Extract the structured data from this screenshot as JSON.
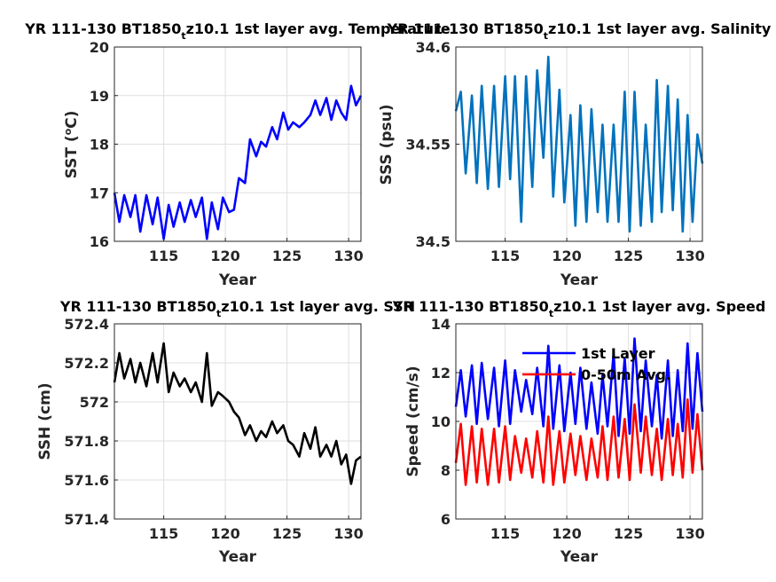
{
  "figure": {
    "panels": [
      {
        "title_main": "YR 111-130 BT1850",
        "title_sub": "t",
        "title_rest": "z10.1 1st layer avg. Temperature",
        "ylabel_main": "SST (",
        "ylabel_sup": "o",
        "ylabel_rest": "C)",
        "xlabel": "Year"
      },
      {
        "title_main": "YR 111-130 BT1850",
        "title_sub": "t",
        "title_rest": "z10.1 1st layer avg. Salinity",
        "ylabel_main": "SSS (psu)",
        "ylabel_sup": "",
        "ylabel_rest": "",
        "xlabel": "Year"
      },
      {
        "title_main": "YR 111-130 BT1850",
        "title_sub": "t",
        "title_rest": "z10.1 1st layer avg. SSH",
        "ylabel_main": "SSH (cm)",
        "ylabel_sup": "",
        "ylabel_rest": "",
        "xlabel": "Year"
      },
      {
        "title_main": "YR 111-130 BT1850",
        "title_sub": "t",
        "title_rest": "z10.1 1st layer avg. Speed",
        "ylabel_main": "Speed (cm/s)",
        "ylabel_sup": "",
        "ylabel_rest": "",
        "xlabel": "Year"
      }
    ]
  },
  "chart_data": [
    {
      "type": "line",
      "title": "YR 111-130 BT1850tz10.1 1st layer avg. Temperature",
      "xlabel": "Year",
      "ylabel": "SST (oC)",
      "xlim": [
        111,
        131
      ],
      "ylim": [
        16,
        20
      ],
      "xticks": [
        115,
        120,
        125,
        130
      ],
      "yticks": [
        16,
        17,
        18,
        19,
        20
      ],
      "ytick_labels": [
        "16",
        "17",
        "18",
        "19",
        "20"
      ],
      "grid": true,
      "series": [
        {
          "color": "#0000ff",
          "x": [
            111.0,
            111.4,
            111.8,
            112.3,
            112.7,
            113.1,
            113.6,
            114.1,
            114.5,
            115.0,
            115.4,
            115.8,
            116.3,
            116.7,
            117.2,
            117.6,
            118.1,
            118.5,
            118.9,
            119.4,
            119.8,
            120.3,
            120.7,
            121.1,
            121.6,
            122.0,
            122.5,
            122.9,
            123.3,
            123.8,
            124.2,
            124.7,
            125.1,
            125.5,
            126.0,
            126.4,
            126.9,
            127.3,
            127.7,
            128.2,
            128.6,
            129.0,
            129.4,
            129.8,
            130.2,
            130.6,
            131.0
          ],
          "values": [
            17.0,
            16.4,
            16.95,
            16.5,
            16.95,
            16.2,
            16.95,
            16.35,
            16.9,
            16.05,
            16.75,
            16.3,
            16.8,
            16.4,
            16.85,
            16.5,
            16.9,
            16.05,
            16.8,
            16.25,
            16.9,
            16.6,
            16.65,
            17.3,
            17.2,
            18.1,
            17.75,
            18.05,
            17.95,
            18.35,
            18.1,
            18.65,
            18.3,
            18.45,
            18.35,
            18.45,
            18.6,
            18.9,
            18.6,
            18.95,
            18.5,
            18.9,
            18.65,
            18.5,
            19.2,
            18.8,
            19.0
          ]
        }
      ]
    },
    {
      "type": "line",
      "title": "YR 111-130 BT1850tz10.1 1st layer avg. Salinity",
      "xlabel": "Year",
      "ylabel": "SSS (psu)",
      "xlim": [
        111,
        131
      ],
      "ylim": [
        34.5,
        34.6
      ],
      "xticks": [
        115,
        120,
        125,
        130
      ],
      "yticks": [
        34.5,
        34.55,
        34.6
      ],
      "ytick_labels": [
        "34.5",
        "34.55",
        "34.6"
      ],
      "grid": true,
      "series": [
        {
          "color": "#0072bd",
          "x": [
            111.0,
            111.4,
            111.8,
            112.3,
            112.7,
            113.1,
            113.6,
            114.1,
            114.5,
            115.0,
            115.4,
            115.8,
            116.3,
            116.7,
            117.2,
            117.6,
            118.1,
            118.5,
            118.9,
            119.4,
            119.8,
            120.3,
            120.7,
            121.1,
            121.6,
            122.0,
            122.5,
            122.9,
            123.3,
            123.8,
            124.2,
            124.7,
            125.1,
            125.5,
            126.0,
            126.4,
            126.9,
            127.3,
            127.7,
            128.2,
            128.6,
            129.0,
            129.4,
            129.8,
            130.2,
            130.6,
            131.0
          ],
          "values": [
            34.567,
            34.577,
            34.535,
            34.575,
            34.53,
            34.58,
            34.527,
            34.58,
            34.528,
            34.585,
            34.532,
            34.585,
            34.51,
            34.585,
            34.528,
            34.588,
            34.543,
            34.595,
            34.523,
            34.578,
            34.52,
            34.565,
            34.508,
            34.57,
            34.51,
            34.568,
            34.515,
            34.56,
            34.51,
            34.56,
            34.51,
            34.577,
            34.505,
            34.577,
            34.508,
            34.56,
            34.51,
            34.583,
            34.515,
            34.58,
            34.516,
            34.573,
            34.505,
            34.565,
            34.51,
            34.555,
            34.54
          ]
        }
      ]
    },
    {
      "type": "line",
      "title": "YR 111-130 BT1850tz10.1 1st layer avg. SSH",
      "xlabel": "Year",
      "ylabel": "SSH (cm)",
      "xlim": [
        111,
        131
      ],
      "ylim": [
        571.4,
        572.4
      ],
      "xticks": [
        115,
        120,
        125,
        130
      ],
      "yticks": [
        571.4,
        571.6,
        571.8,
        572,
        572.2,
        572.4
      ],
      "ytick_labels": [
        "571.4",
        "571.6",
        "571.8",
        "572",
        "572.2",
        "572.4"
      ],
      "grid": true,
      "series": [
        {
          "color": "#000000",
          "x": [
            111.0,
            111.4,
            111.8,
            112.3,
            112.7,
            113.1,
            113.6,
            114.1,
            114.5,
            115.0,
            115.4,
            115.8,
            116.3,
            116.7,
            117.2,
            117.6,
            118.1,
            118.5,
            118.9,
            119.4,
            119.8,
            120.3,
            120.7,
            121.1,
            121.6,
            122.0,
            122.5,
            122.9,
            123.3,
            123.8,
            124.2,
            124.7,
            125.1,
            125.5,
            126.0,
            126.4,
            126.9,
            127.3,
            127.7,
            128.2,
            128.6,
            129.0,
            129.4,
            129.8,
            130.2,
            130.6,
            131.0
          ],
          "values": [
            572.1,
            572.25,
            572.12,
            572.22,
            572.1,
            572.2,
            572.08,
            572.25,
            572.1,
            572.3,
            572.05,
            572.15,
            572.08,
            572.12,
            572.05,
            572.1,
            572.0,
            572.25,
            571.98,
            572.05,
            572.03,
            572.0,
            571.95,
            571.92,
            571.83,
            571.88,
            571.8,
            571.85,
            571.82,
            571.9,
            571.84,
            571.88,
            571.8,
            571.78,
            571.72,
            571.84,
            571.76,
            571.87,
            571.72,
            571.78,
            571.72,
            571.8,
            571.68,
            571.73,
            571.58,
            571.7,
            571.72
          ]
        }
      ]
    },
    {
      "type": "line",
      "title": "YR 111-130 BT1850tz10.1 1st layer avg. Speed",
      "xlabel": "Year",
      "ylabel": "Speed (cm/s)",
      "xlim": [
        111,
        131
      ],
      "ylim": [
        6,
        14
      ],
      "xticks": [
        115,
        120,
        125,
        130
      ],
      "yticks": [
        6,
        8,
        10,
        12,
        14
      ],
      "ytick_labels": [
        "6",
        "8",
        "10",
        "12",
        "14"
      ],
      "grid": true,
      "legend": "top",
      "series": [
        {
          "name": "1st Layer",
          "color": "#0000ff",
          "x": [
            111.0,
            111.4,
            111.8,
            112.3,
            112.7,
            113.1,
            113.6,
            114.1,
            114.5,
            115.0,
            115.4,
            115.8,
            116.3,
            116.7,
            117.2,
            117.6,
            118.1,
            118.5,
            118.9,
            119.4,
            119.8,
            120.3,
            120.7,
            121.1,
            121.6,
            122.0,
            122.5,
            122.9,
            123.3,
            123.8,
            124.2,
            124.7,
            125.1,
            125.5,
            126.0,
            126.4,
            126.9,
            127.3,
            127.7,
            128.2,
            128.6,
            129.0,
            129.4,
            129.8,
            130.2,
            130.6,
            131.0
          ],
          "values": [
            10.6,
            12.1,
            10.2,
            12.3,
            9.9,
            12.4,
            10.1,
            12.2,
            9.8,
            12.5,
            9.9,
            12.1,
            10.4,
            11.7,
            10.3,
            12.2,
            9.8,
            13.1,
            9.7,
            12.3,
            9.6,
            12.0,
            9.9,
            12.2,
            9.7,
            11.6,
            9.5,
            11.9,
            9.8,
            12.8,
            9.4,
            12.6,
            9.5,
            13.4,
            9.6,
            12.5,
            9.8,
            11.9,
            9.3,
            12.5,
            9.4,
            12.1,
            9.6,
            13.2,
            9.7,
            12.8,
            10.4
          ]
        },
        {
          "name": "0-50m Avg.",
          "color": "#ff0000",
          "x": [
            111.0,
            111.4,
            111.8,
            112.3,
            112.7,
            113.1,
            113.6,
            114.1,
            114.5,
            115.0,
            115.4,
            115.8,
            116.3,
            116.7,
            117.2,
            117.6,
            118.1,
            118.5,
            118.9,
            119.4,
            119.8,
            120.3,
            120.7,
            121.1,
            121.6,
            122.0,
            122.5,
            122.9,
            123.3,
            123.8,
            124.2,
            124.7,
            125.1,
            125.5,
            126.0,
            126.4,
            126.9,
            127.3,
            127.7,
            128.2,
            128.6,
            129.0,
            129.4,
            129.8,
            130.2,
            130.6,
            131.0
          ],
          "values": [
            8.3,
            9.9,
            7.4,
            9.8,
            7.5,
            9.7,
            7.4,
            9.7,
            7.5,
            9.8,
            7.6,
            9.4,
            7.9,
            9.3,
            7.7,
            9.6,
            7.5,
            10.2,
            7.4,
            9.6,
            7.5,
            9.5,
            7.8,
            9.4,
            7.6,
            9.3,
            7.7,
            9.8,
            7.6,
            10.2,
            7.7,
            10.1,
            7.6,
            10.7,
            7.9,
            10.2,
            7.8,
            9.7,
            7.6,
            10.1,
            7.8,
            9.9,
            7.7,
            10.9,
            7.9,
            10.3,
            8.0
          ]
        }
      ]
    }
  ]
}
